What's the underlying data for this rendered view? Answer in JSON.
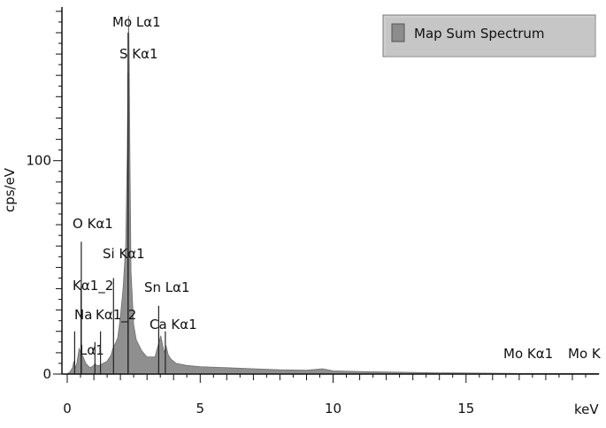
{
  "chart_data": {
    "type": "area",
    "title": "",
    "xlabel": "keV",
    "ylabel": "cps/eV",
    "xlim": [
      -0.2,
      20
    ],
    "ylim": [
      0,
      172
    ],
    "x_ticks": [
      0,
      5,
      10,
      15
    ],
    "x_tick_labels": [
      "0",
      "5",
      "10",
      "15"
    ],
    "y_ticks": [
      0,
      100
    ],
    "y_tick_labels": [
      "0",
      "100"
    ],
    "legend": {
      "entries": [
        "Map Sum Spectrum"
      ],
      "placement": "top-right"
    },
    "series": [
      {
        "name": "Map Sum Spectrum",
        "color": "#8f8f8f",
        "x": [
          0.0,
          0.1,
          0.2,
          0.25,
          0.3,
          0.36,
          0.45,
          0.52,
          0.6,
          0.7,
          0.85,
          1.0,
          1.04,
          1.1,
          1.2,
          1.35,
          1.5,
          1.65,
          1.74,
          1.8,
          1.9,
          2.0,
          2.1,
          2.2,
          2.26,
          2.29,
          2.31,
          2.33,
          2.36,
          2.4,
          2.5,
          2.6,
          2.8,
          3.0,
          3.3,
          3.45,
          3.52,
          3.58,
          3.65,
          3.69,
          3.72,
          3.8,
          3.9,
          4.1,
          4.5,
          5.0,
          6.0,
          7.0,
          8.0,
          9.0,
          9.6,
          9.8,
          10.0,
          11.0,
          12.0,
          13.0,
          14.0,
          15.0,
          16.0,
          17.0,
          18.0,
          19.0,
          20.0
        ],
        "y": [
          0,
          1,
          3,
          6,
          3,
          5,
          12,
          10,
          8,
          5,
          3,
          4,
          5,
          4,
          4,
          5,
          6,
          9,
          13,
          14,
          17,
          27,
          40,
          60,
          105,
          150,
          168,
          150,
          100,
          48,
          23,
          16,
          11,
          8,
          8,
          15,
          18,
          14,
          10,
          12,
          13,
          9,
          7,
          5,
          4,
          3.5,
          3,
          2.5,
          2,
          1.8,
          2.5,
          2,
          1.5,
          1.2,
          1,
          0.8,
          0.6,
          0.5,
          0.4,
          0.3,
          0.3,
          0.3,
          0.3
        ]
      }
    ],
    "peak_markers": [
      {
        "x": 0.28,
        "height": 20,
        "label": "Lα1"
      },
      {
        "x": 0.52,
        "height": 41,
        "label": "Kα1_2"
      },
      {
        "x": 0.52,
        "height": 28,
        "label": "Na"
      },
      {
        "x": 0.53,
        "height": 62,
        "label": "O Kα1"
      },
      {
        "x": 1.04,
        "height": 15,
        "label": ""
      },
      {
        "x": 1.25,
        "height": 20,
        "label": "Kα1_2"
      },
      {
        "x": 1.74,
        "height": 45,
        "label": "Si Kα1"
      },
      {
        "x": 2.29,
        "height": 141,
        "label": "S Kα1"
      },
      {
        "x": 2.29,
        "height": 160,
        "label": "Mo Lα1"
      },
      {
        "x": 3.44,
        "height": 32,
        "label": "Sn Lα1"
      },
      {
        "x": 3.69,
        "height": 20,
        "label": "Ca Kα1"
      },
      {
        "x": 17.48,
        "height": 0,
        "label": "Mo Kα1"
      },
      {
        "x": 19.6,
        "height": 0,
        "label": "Mo K"
      }
    ]
  }
}
